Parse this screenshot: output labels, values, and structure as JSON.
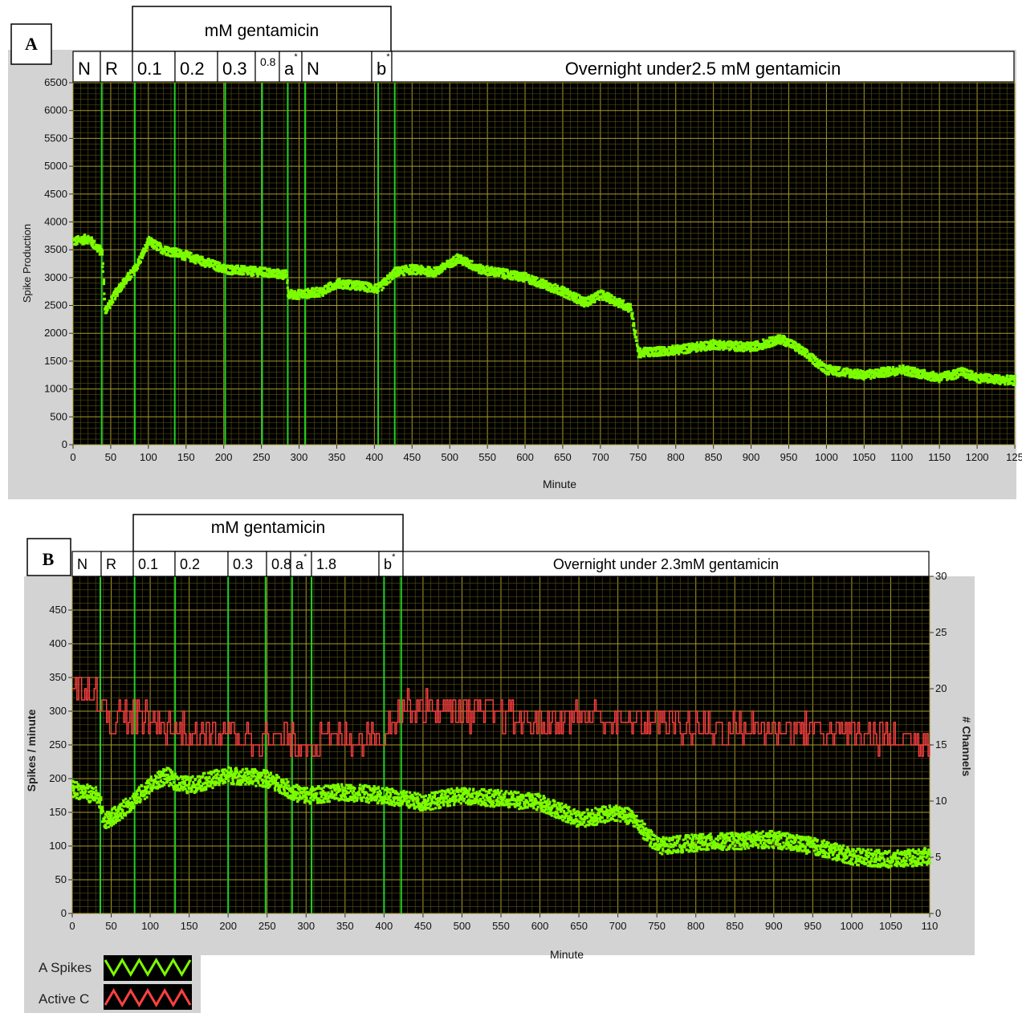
{
  "panelA": {
    "letter": "A",
    "header": "mM gentamicin",
    "phases": [
      "N",
      "R",
      "0.1",
      "0.2",
      "0.3",
      "0.8",
      "a",
      "N",
      "b",
      "Overnight under2.5 mM gentamicin"
    ],
    "phase_marks": [
      "",
      "",
      "",
      "",
      "",
      "",
      "*",
      "",
      "*",
      ""
    ],
    "chart_data": {
      "type": "scatter",
      "xlabel": "Minute",
      "ylabel": "Spike Production",
      "xlim": [
        0,
        1250
      ],
      "ylim": [
        0,
        6500
      ],
      "x_ticks": [
        "0",
        "50",
        "100",
        "150",
        "200",
        "250",
        "300",
        "350",
        "400",
        "450",
        "500",
        "550",
        "600",
        "650",
        "700",
        "750",
        "800",
        "850",
        "900",
        "950",
        "1000",
        "1050",
        "1100",
        "1150",
        "1200",
        "125"
      ],
      "y_ticks": [
        "0",
        "500",
        "1000",
        "1500",
        "2000",
        "2500",
        "3000",
        "3500",
        "4000",
        "4500",
        "5000",
        "5500",
        "6000",
        "6500"
      ],
      "markers": [
        38,
        82,
        135,
        202,
        251,
        285,
        308,
        405,
        427
      ],
      "series": [
        {
          "color": "#7cfc00",
          "x": [
            0,
            20,
            38,
            42,
            60,
            82,
            100,
            120,
            135,
            160,
            202,
            251,
            283,
            285,
            300,
            330,
            350,
            380,
            405,
            427,
            450,
            480,
            500,
            510,
            540,
            600,
            650,
            680,
            700,
            740,
            750,
            800,
            850,
            900,
            940,
            960,
            1000,
            1050,
            1100,
            1150,
            1180,
            1200,
            1250
          ],
          "y": [
            3650,
            3700,
            3450,
            2400,
            2800,
            3150,
            3650,
            3500,
            3450,
            3350,
            3150,
            3100,
            3050,
            2700,
            2700,
            2750,
            2900,
            2850,
            2800,
            3100,
            3150,
            3100,
            3250,
            3350,
            3150,
            3000,
            2750,
            2550,
            2700,
            2450,
            1650,
            1700,
            1800,
            1750,
            1900,
            1750,
            1350,
            1250,
            1350,
            1200,
            1300,
            1200,
            1150
          ]
        }
      ]
    }
  },
  "panelB": {
    "letter": "B",
    "header": "mM gentamicin",
    "phases": [
      "N",
      "R",
      "0.1",
      "0.2",
      "0.3",
      "0.8",
      "a",
      "1.8",
      "b",
      "Overnight under 2.3mM gentamicin"
    ],
    "phase_marks": [
      "",
      "",
      "",
      "",
      "",
      "",
      "*",
      "",
      "*",
      ""
    ],
    "chart_data": {
      "type": "scatter",
      "xlabel": "Minute",
      "ylabel": "Spikes / minute",
      "ylabel_right": "# Channels",
      "xlim": [
        0,
        1100
      ],
      "ylim": [
        0,
        500
      ],
      "ylim_right": [
        0,
        30
      ],
      "x_ticks": [
        "0",
        "50",
        "100",
        "150",
        "200",
        "250",
        "300",
        "350",
        "400",
        "450",
        "500",
        "550",
        "600",
        "650",
        "700",
        "750",
        "800",
        "850",
        "900",
        "950",
        "1000",
        "1050",
        "110"
      ],
      "y_ticks": [
        "0",
        "50",
        "100",
        "150",
        "200",
        "250",
        "300",
        "350",
        "400",
        "450"
      ],
      "y_ticks_right": [
        "0",
        "5",
        "10",
        "15",
        "20",
        "25",
        "30"
      ],
      "markers": [
        36,
        80,
        132,
        200,
        248,
        282,
        307,
        400,
        422
      ],
      "series": [
        {
          "name": "A Spikes",
          "axis": "left",
          "color": "#7cfc00",
          "x": [
            0,
            30,
            36,
            40,
            60,
            80,
            100,
            120,
            132,
            150,
            200,
            248,
            270,
            282,
            300,
            350,
            400,
            422,
            450,
            500,
            550,
            600,
            650,
            700,
            720,
            750,
            800,
            900,
            950,
            1000,
            1050,
            1100
          ],
          "y": [
            185,
            175,
            160,
            135,
            150,
            170,
            190,
            205,
            195,
            190,
            205,
            200,
            190,
            180,
            175,
            180,
            175,
            170,
            165,
            175,
            170,
            165,
            140,
            150,
            140,
            100,
            105,
            110,
            100,
            85,
            80,
            85
          ]
        },
        {
          "name": "Active C",
          "axis": "right",
          "color": "#ff4040",
          "x": [
            0,
            30,
            36,
            40,
            80,
            100,
            132,
            150,
            200,
            248,
            282,
            300,
            330,
            400,
            422,
            450,
            500,
            550,
            600,
            650,
            700,
            750,
            800,
            900,
            950,
            1000,
            1050,
            1100
          ],
          "y": [
            20,
            20,
            19,
            17.5,
            17.5,
            17,
            16.5,
            16,
            16,
            15.5,
            15.5,
            15,
            15.5,
            16,
            18.5,
            18.5,
            18,
            17.5,
            17,
            17.5,
            17,
            17,
            16.5,
            16.5,
            16.5,
            16,
            15.5,
            15.5
          ]
        }
      ]
    },
    "legend": [
      {
        "label": "A Spikes",
        "color": "#7cfc00"
      },
      {
        "label": "Active C",
        "color": "#ff4040"
      }
    ]
  }
}
